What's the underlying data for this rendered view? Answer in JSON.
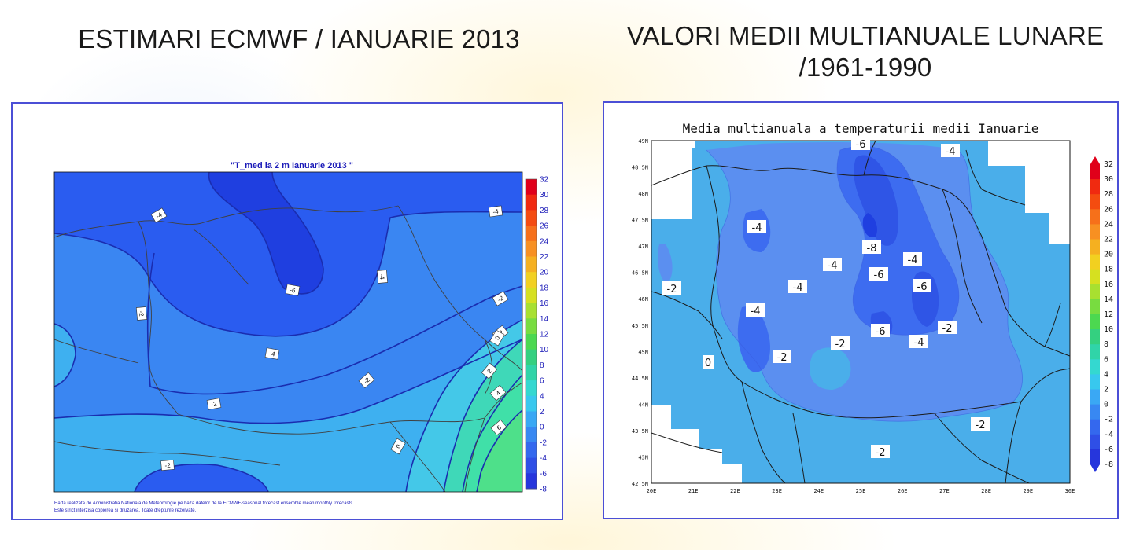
{
  "slide": {
    "left_heading": "ESTIMARI ECMWF / IANUARIE 2013",
    "right_heading_line1": "VALORI MEDII MULTIANUALE LUNARE",
    "right_heading_line2": "/1961-1990"
  },
  "left_map": {
    "title": "\"T_med la 2 m Ianuarie 2013 \"",
    "footer_line1": "Harta realizata de Administratia Nationala de Meteorologie pe baza datelor de la ECMWF-seasonal forecast ensemble mean monthly forecasts",
    "footer_line2": "Este strict interzisa copierea si difuzarea. Toate drepturile rezervate.",
    "colorbar_ticks": [
      "32",
      "30",
      "28",
      "26",
      "24",
      "22",
      "20",
      "18",
      "16",
      "14",
      "12",
      "10",
      "8",
      "6",
      "4",
      "2",
      "0",
      "-2",
      "-4",
      "-6",
      "-8"
    ],
    "contour_labels": [
      {
        "text": "-4"
      },
      {
        "text": "-4"
      },
      {
        "text": "-6"
      },
      {
        "text": "-4"
      },
      {
        "text": "-4"
      },
      {
        "text": "-2"
      },
      {
        "text": "-2"
      },
      {
        "text": "-2"
      },
      {
        "text": "-2"
      },
      {
        "text": "-2"
      },
      {
        "text": "-2"
      },
      {
        "text": "0"
      },
      {
        "text": "2"
      },
      {
        "text": "4"
      },
      {
        "text": "6"
      },
      {
        "text": "0"
      }
    ]
  },
  "right_map": {
    "title": "Media multianuala a temperaturii medii Ianuarie",
    "lat_ticks": [
      "49N",
      "48.5N",
      "48N",
      "47.5N",
      "47N",
      "46.5N",
      "46N",
      "45.5N",
      "45N",
      "44.5N",
      "44N",
      "43.5N",
      "43N",
      "42.5N"
    ],
    "lon_ticks": [
      "20E",
      "21E",
      "22E",
      "23E",
      "24E",
      "25E",
      "26E",
      "27E",
      "28E",
      "29E",
      "30E"
    ],
    "colorbar_ticks": [
      "32",
      "30",
      "28",
      "26",
      "24",
      "22",
      "20",
      "18",
      "16",
      "14",
      "12",
      "10",
      "8",
      "6",
      "4",
      "2",
      "0",
      "-2",
      "-4",
      "-6",
      "-8"
    ],
    "contour_labels": [
      {
        "text": "-6"
      },
      {
        "text": "-4"
      },
      {
        "text": "-4"
      },
      {
        "text": "-8"
      },
      {
        "text": "-4"
      },
      {
        "text": "-4"
      },
      {
        "text": "-6"
      },
      {
        "text": "-2"
      },
      {
        "text": "-4"
      },
      {
        "text": "-6"
      },
      {
        "text": "-4"
      },
      {
        "text": "-6"
      },
      {
        "text": "-2"
      },
      {
        "text": "-2"
      },
      {
        "text": "-4"
      },
      {
        "text": "-2"
      },
      {
        "text": "0"
      },
      {
        "text": "-2"
      },
      {
        "text": "-2"
      }
    ]
  },
  "colors": {
    "deep": "#1f3fe0",
    "dark": "#2a5cf0",
    "mid": "#3a86f2",
    "light": "#3eb0f0",
    "cyan": "#44c8e8",
    "teal": "#3fd8b8",
    "green": "#4ee08a",
    "right_mid": "#5b8ff0",
    "right_dark": "#3d6cf0",
    "right_light": "#4aaeea",
    "right_deep": "#2f55e6",
    "frame_border": "#4b4fd6"
  }
}
